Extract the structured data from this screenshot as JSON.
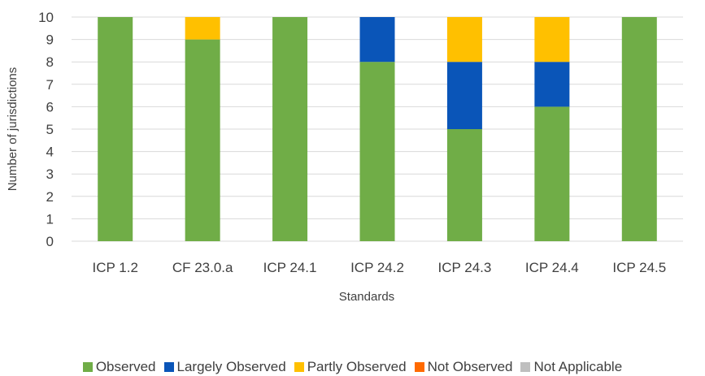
{
  "chart_data": {
    "type": "bar",
    "stacked": true,
    "title": "",
    "xlabel": "Standards",
    "ylabel": "Number of jurisdictions",
    "ylim": [
      0,
      10
    ],
    "yticks": [
      "0",
      "1",
      "2",
      "3",
      "4",
      "5",
      "6",
      "7",
      "8",
      "9",
      "10"
    ],
    "grid": true,
    "legend_position": "bottom",
    "categories": [
      "ICP 1.2",
      "CF 23.0.a",
      "ICP 24.1",
      "ICP 24.2",
      "ICP 24.3",
      "ICP 24.4",
      "ICP 24.5"
    ],
    "series": [
      {
        "name": "Observed",
        "color": "#70ad47",
        "values": [
          10,
          9,
          10,
          8,
          5,
          6,
          10
        ]
      },
      {
        "name": "Largely Observed",
        "color": "#0a55b8",
        "values": [
          0,
          0,
          0,
          2,
          3,
          2,
          0
        ]
      },
      {
        "name": "Partly Observed",
        "color": "#ffc000",
        "values": [
          0,
          1,
          0,
          0,
          2,
          2,
          0
        ]
      },
      {
        "name": "Not Observed",
        "color": "#ff6a00",
        "values": [
          0,
          0,
          0,
          0,
          0,
          0,
          0
        ]
      },
      {
        "name": "Not Applicable",
        "color": "#bfbfbf",
        "values": [
          0,
          0,
          0,
          0,
          0,
          0,
          0
        ]
      }
    ]
  }
}
